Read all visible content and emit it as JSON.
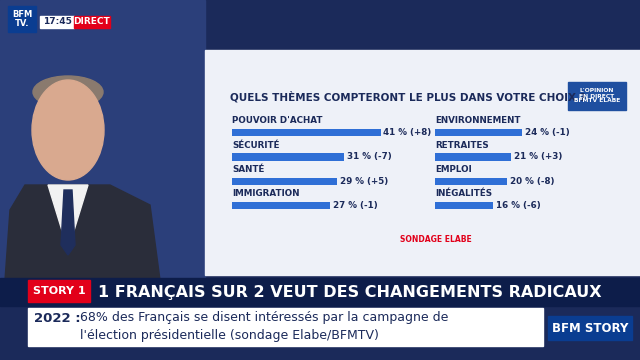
{
  "chart_data": {
    "type": "bar",
    "orientation": "horizontal",
    "title": "QUELS THÈMES COMPTERONT LE PLUS DANS VOTRE CHOIX ?",
    "categories": [
      "POUVOIR D'ACHAT",
      "SÉCURITÉ",
      "SANTÉ",
      "IMMIGRATION",
      "ENVIRONNEMENT",
      "RETRAITES",
      "EMPLOI",
      "INÉGALITÉS"
    ],
    "values": [
      41,
      31,
      29,
      27,
      24,
      21,
      20,
      16
    ],
    "value_labels": [
      "41 % (+8)",
      "31 % (-7)",
      "29 % (+5)",
      "27 % (-1)",
      "24 % (-1)",
      "21 % (+3)",
      "20 % (-8)",
      "16 % (-6)"
    ],
    "color": "#2f6fd6",
    "xlim": [
      0,
      45
    ],
    "data_labels": true,
    "tick_labels": false,
    "grid": false
  },
  "screen": {
    "logo": "BFM\nTV.",
    "time": "17:45",
    "live": "DIRECT",
    "poll_badge": "L'OPINION\nEN DIRECT\nBFMTV ELABE",
    "source": "SONDAGE ELABE",
    "story_tag": "STORY 1",
    "headline": "1 FRANÇAIS SUR 2 VEUT DES CHANGEMENTS RADICAUX",
    "ticker_lead": "2022 :",
    "ticker": [
      "68% des Français se disent intéressés par la campagne de",
      "l'élection présidentielle (sondage Elabe/BFMTV)"
    ],
    "channel_tag": "BFM STORY"
  }
}
